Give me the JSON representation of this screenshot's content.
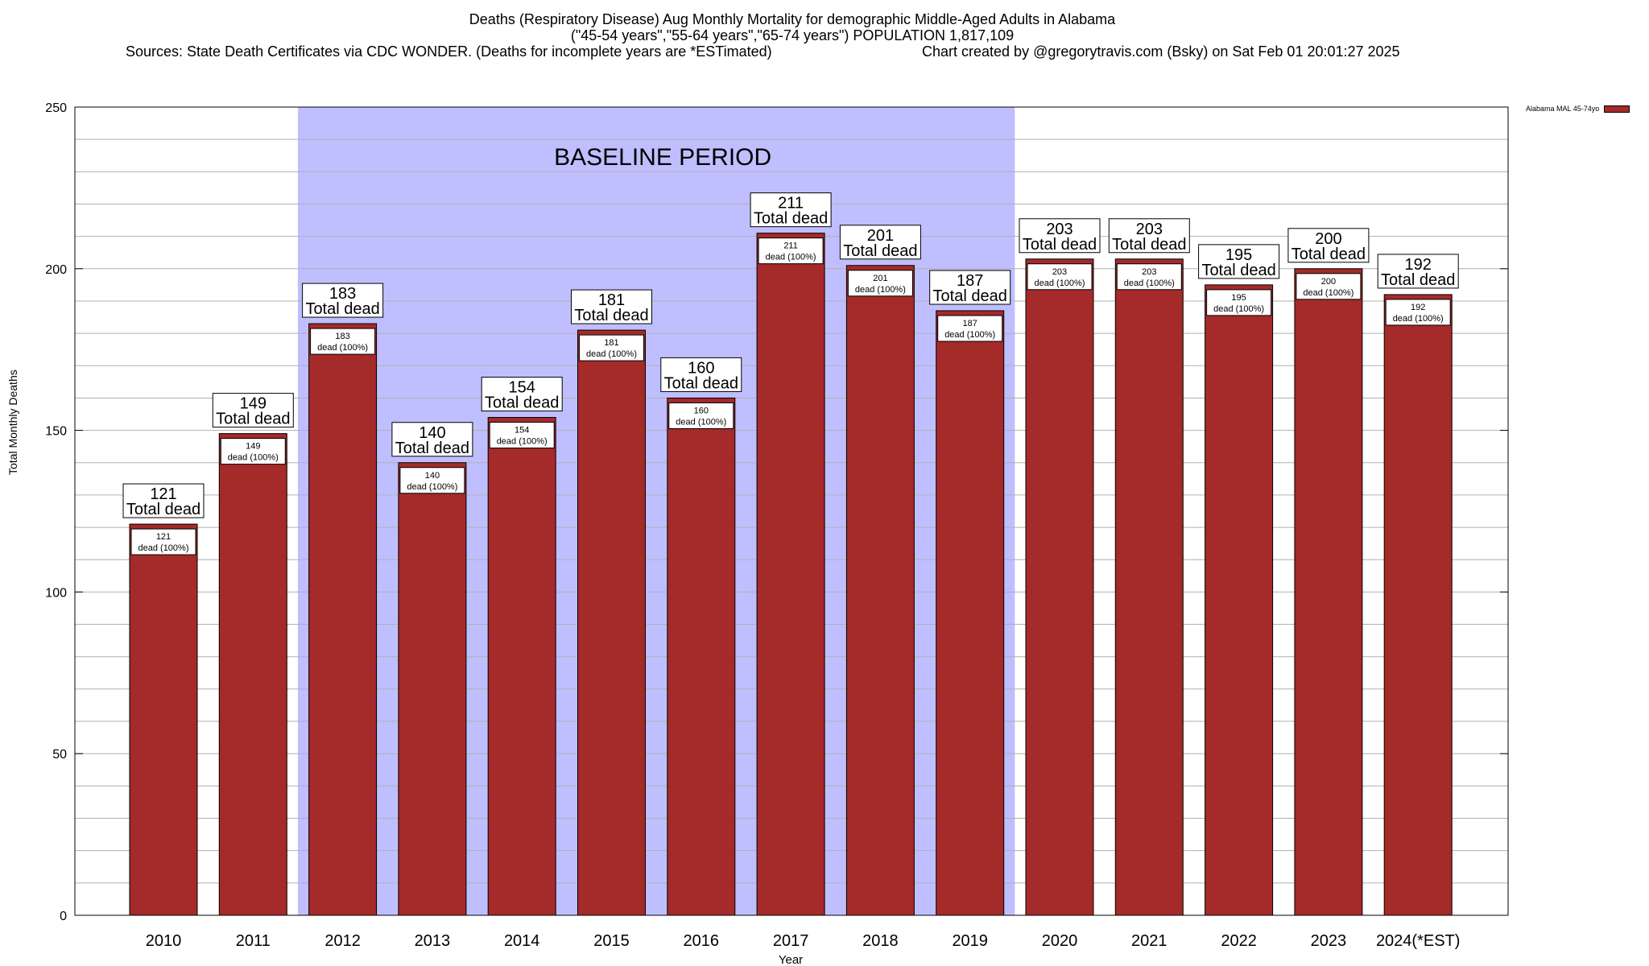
{
  "title": {
    "line1": "Deaths (Respiratory Disease) Aug Monthly Mortality for demographic Middle-Aged Adults in Alabama",
    "line2": "(\"45-54 years\",\"55-64 years\",\"65-74 years\") POPULATION 1,817,109",
    "line3_source": "Sources: State Death Certificates via CDC WONDER. (Deaths for incomplete years are *ESTimated)",
    "line3_credit": "Chart created by @gregorytravis.com (Bsky) on Sat Feb 01 20:01:27 2025"
  },
  "chart_data": {
    "type": "bar",
    "categories": [
      "2010",
      "2011",
      "2012",
      "2013",
      "2014",
      "2015",
      "2016",
      "2017",
      "2018",
      "2019",
      "2020",
      "2021",
      "2022",
      "2023",
      "2024(*EST)"
    ],
    "series": [
      {
        "name": "Alabama MAL 45-74yo",
        "values": [
          121,
          149,
          183,
          140,
          154,
          181,
          160,
          211,
          201,
          187,
          203,
          203,
          195,
          200,
          192
        ],
        "color": "#a52a2a"
      }
    ],
    "top_label_suffix": "Total dead",
    "inner_label_suffix": "dead (100%)",
    "xlabel": "Year",
    "ylabel": "Total Monthly Deaths",
    "ylim": [
      0,
      250
    ],
    "yticks": [
      0,
      50,
      100,
      150,
      200,
      250
    ],
    "baseline": {
      "label": "BASELINE PERIOD",
      "from": "2012",
      "to": "2019",
      "color": "#bfbfff"
    },
    "grid": true,
    "legend_position": "top-right"
  }
}
